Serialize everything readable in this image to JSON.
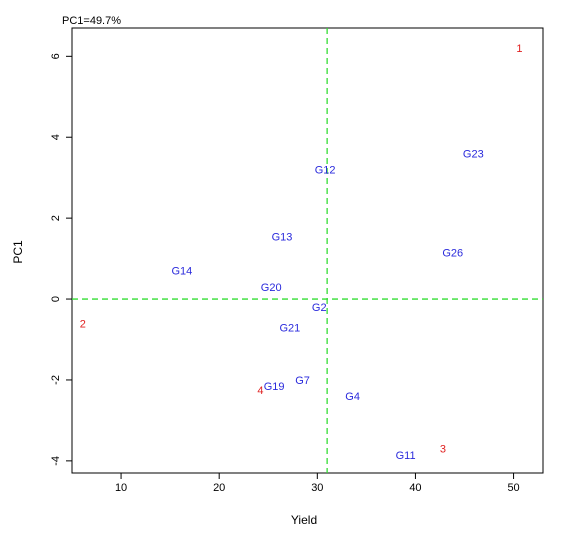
{
  "chart_data": {
    "type": "scatter",
    "title": "PC1=49.7%",
    "xlabel": "Yield",
    "ylabel": "PC1",
    "xlim": [
      5,
      53
    ],
    "ylim": [
      -4.3,
      6.7
    ],
    "xticks": [
      10,
      20,
      30,
      40,
      50
    ],
    "yticks": [
      -4,
      -2,
      0,
      2,
      4,
      6
    ],
    "xtick_labels": [
      "10",
      "20",
      "30",
      "40",
      "50"
    ],
    "ytick_labels": [
      "-4",
      "-2",
      "0",
      "2",
      "4",
      "6"
    ],
    "grid": false,
    "reference_lines": {
      "x": 31.0,
      "y": 0.0,
      "color": "#33dd33",
      "style": "dashed"
    },
    "colors": {
      "genotype": "#2a2adc",
      "environment": "#e02020",
      "reference": "#33dd33"
    },
    "series": [
      {
        "name": "genotypes",
        "points": [
          {
            "label": "G12",
            "x": 30.8,
            "y": 3.2
          },
          {
            "label": "G23",
            "x": 45.9,
            "y": 3.6
          },
          {
            "label": "G13",
            "x": 26.4,
            "y": 1.55
          },
          {
            "label": "G26",
            "x": 43.8,
            "y": 1.15
          },
          {
            "label": "G14",
            "x": 16.2,
            "y": 0.7
          },
          {
            "label": "G20",
            "x": 25.3,
            "y": 0.3
          },
          {
            "label": "G2",
            "x": 30.2,
            "y": -0.2
          },
          {
            "label": "G21",
            "x": 27.2,
            "y": -0.7
          },
          {
            "label": "G7",
            "x": 28.5,
            "y": -2.0
          },
          {
            "label": "G19",
            "x": 25.6,
            "y": -2.15
          },
          {
            "label": "G4",
            "x": 33.6,
            "y": -2.4
          },
          {
            "label": "G11",
            "x": 39.0,
            "y": -3.85
          }
        ]
      },
      {
        "name": "environments",
        "points": [
          {
            "label": "1",
            "x": 50.6,
            "y": 6.2
          },
          {
            "label": "2",
            "x": 6.1,
            "y": -0.6
          },
          {
            "label": "3",
            "x": 42.8,
            "y": -3.7
          },
          {
            "label": "4",
            "x": 24.2,
            "y": -2.25
          }
        ]
      }
    ]
  }
}
